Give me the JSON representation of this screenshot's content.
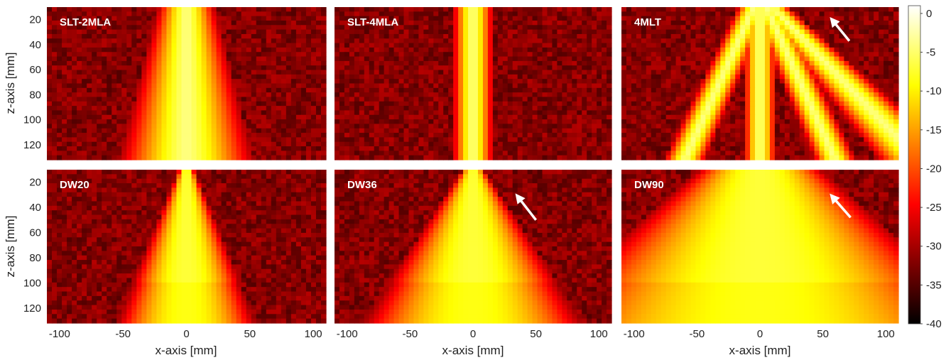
{
  "chart_data": {
    "type": "heatmap",
    "layout": {
      "rows": 2,
      "cols": 3
    },
    "colormap": "hot",
    "xlabel": "x-axis [mm]",
    "ylabel": "z-axis [mm]",
    "xlim": [
      -110,
      110
    ],
    "ylim": [
      10,
      132
    ],
    "xticks": [
      -100,
      -50,
      0,
      50,
      100
    ],
    "yticks": [
      20,
      40,
      60,
      80,
      100,
      120
    ],
    "colorbar": {
      "range": [
        -40,
        1
      ],
      "ticks": [
        0,
        -5,
        -10,
        -15,
        -20,
        -25,
        -30,
        -35,
        -40
      ],
      "tick_labels": [
        "0",
        "-5",
        "-10",
        "-15",
        "-20",
        "-25",
        "-30",
        "-35",
        "-40"
      ]
    },
    "panels": [
      {
        "title": "SLT-2MLA",
        "beams": [
          {
            "x0": 0,
            "slope": 0,
            "width0": 7,
            "widthGrow": 0.08
          }
        ],
        "arrow": null
      },
      {
        "title": "SLT-4MLA",
        "beams": [
          {
            "x0": 0,
            "slope": 0,
            "width0": 5,
            "widthGrow": 0
          }
        ],
        "arrow": null
      },
      {
        "title": "4MLT",
        "beams": [
          {
            "x0": -5,
            "slope": -0.45,
            "width0": 4,
            "widthGrow": 0.01
          },
          {
            "x0": 0,
            "slope": 0,
            "width0": 4,
            "widthGrow": 0
          },
          {
            "x0": 5,
            "slope": 0.45,
            "width0": 4,
            "widthGrow": 0.01
          },
          {
            "x0": 10,
            "slope": 0.95,
            "width0": 4,
            "widthGrow": 0.05
          }
        ],
        "arrow": {
          "from": [
            71,
            37
          ],
          "to": [
            58,
            21
          ]
        }
      },
      {
        "title": "DW20",
        "cone": {
          "x0": 0,
          "halfStart": 5,
          "spread": 0.34
        },
        "arrow": null
      },
      {
        "title": "DW36",
        "cone": {
          "x0": 0,
          "halfStart": 7,
          "spread": 0.55
        },
        "arrow": {
          "from": [
            50,
            50
          ],
          "to": [
            36,
            32
          ]
        }
      },
      {
        "title": "DW90",
        "cone": {
          "x0": 0,
          "halfStart": 40,
          "spread": 0.95
        },
        "arrow": {
          "from": [
            72,
            48
          ],
          "to": [
            58,
            32
          ]
        }
      }
    ]
  }
}
